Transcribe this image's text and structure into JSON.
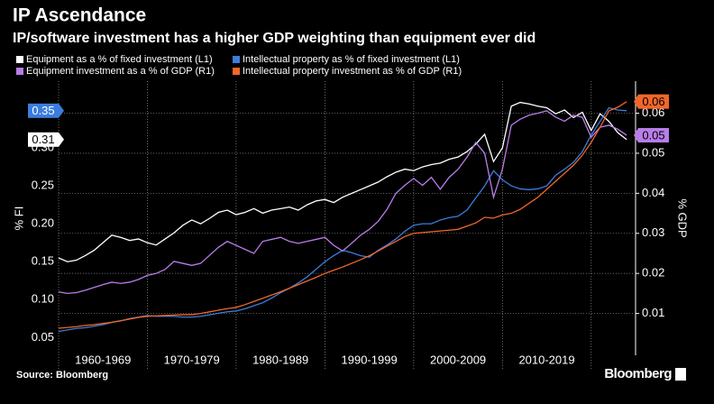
{
  "chart_data": {
    "type": "line",
    "title": "IP Ascendance",
    "subtitle": "IP/software investment has a higher GDP weighting than equipment ever did",
    "y_label": "% FI",
    "y2_label": "% GDP",
    "source": "Source: Bloomberg",
    "brand": "Bloomberg",
    "x": [
      1960,
      1961,
      1962,
      1963,
      1964,
      1965,
      1966,
      1967,
      1968,
      1969,
      1970,
      1971,
      1972,
      1973,
      1974,
      1975,
      1976,
      1977,
      1978,
      1979,
      1980,
      1981,
      1982,
      1983,
      1984,
      1985,
      1986,
      1987,
      1988,
      1989,
      1990,
      1991,
      1992,
      1993,
      1994,
      1995,
      1996,
      1997,
      1998,
      1999,
      2000,
      2001,
      2002,
      2003,
      2004,
      2005,
      2006,
      2007,
      2008,
      2009,
      2010,
      2011,
      2012,
      2013,
      2014,
      2015,
      2016,
      2017,
      2018,
      2019,
      2020,
      2021,
      2022,
      2023,
      2024
    ],
    "xlim": [
      1960,
      2025
    ],
    "xticks": [
      {
        "value": 1960,
        "label": "1960-1969"
      },
      {
        "value": 1970,
        "label": "1970-1979"
      },
      {
        "value": 1980,
        "label": "1980-1989"
      },
      {
        "value": 1990,
        "label": "1990-1999"
      },
      {
        "value": 2000,
        "label": "2000-2009"
      },
      {
        "value": 2010,
        "label": "2010-2019"
      },
      {
        "value": 2020,
        "label": null
      }
    ],
    "ylim": [
      0.029,
      0.388
    ],
    "yticks": [
      0.05,
      {
        "value": 0.1,
        "label": "0.10"
      },
      0.15,
      {
        "value": 0.2,
        "label": "0.20"
      },
      0.25,
      {
        "value": 0.3,
        "label": "0.30"
      },
      0.35
    ],
    "y2lim": [
      0,
      0.068
    ],
    "y2ticks": [
      0.01,
      0.02,
      0.03,
      0.04,
      0.05,
      0.06
    ],
    "grid": true,
    "series": [
      {
        "name": "Equipment as a % of fixed investment (L1)",
        "color": "#ffffff",
        "axis": "y",
        "last_label": "0.31",
        "values": [
          0.155,
          0.15,
          0.152,
          0.158,
          0.165,
          0.175,
          0.185,
          0.182,
          0.178,
          0.18,
          0.175,
          0.172,
          0.18,
          0.188,
          0.198,
          0.205,
          0.2,
          0.207,
          0.215,
          0.218,
          0.212,
          0.215,
          0.22,
          0.214,
          0.218,
          0.22,
          0.222,
          0.218,
          0.225,
          0.23,
          0.232,
          0.228,
          0.235,
          0.24,
          0.245,
          0.25,
          0.255,
          0.262,
          0.268,
          0.272,
          0.27,
          0.275,
          0.278,
          0.28,
          0.285,
          0.288,
          0.295,
          0.305,
          0.318,
          0.282,
          0.3,
          0.355,
          0.36,
          0.358,
          0.355,
          0.353,
          0.345,
          0.35,
          0.34,
          0.347,
          0.323,
          0.345,
          0.335,
          0.32,
          0.311
        ]
      },
      {
        "name": "Intellectual property as % of fixed investment (L1)",
        "color": "#3b7ddd",
        "axis": "y",
        "last_label": "0.35",
        "values": [
          0.058,
          0.06,
          0.062,
          0.063,
          0.065,
          0.067,
          0.07,
          0.072,
          0.075,
          0.077,
          0.079,
          0.078,
          0.078,
          0.078,
          0.077,
          0.077,
          0.078,
          0.08,
          0.082,
          0.084,
          0.085,
          0.088,
          0.092,
          0.096,
          0.102,
          0.109,
          0.115,
          0.122,
          0.13,
          0.14,
          0.15,
          0.158,
          0.165,
          0.162,
          0.158,
          0.156,
          0.165,
          0.172,
          0.18,
          0.19,
          0.198,
          0.2,
          0.2,
          0.205,
          0.208,
          0.21,
          0.218,
          0.234,
          0.25,
          0.27,
          0.258,
          0.25,
          0.246,
          0.245,
          0.246,
          0.25,
          0.264,
          0.272,
          0.281,
          0.295,
          0.317,
          0.335,
          0.353,
          0.35,
          0.349
        ]
      },
      {
        "name": "Equipment investment as a % of GDP (R1)",
        "color": "#b77ee8",
        "axis": "y2",
        "last_label": "0.05",
        "values": [
          0.0154,
          0.015,
          0.0152,
          0.0158,
          0.0165,
          0.0172,
          0.0178,
          0.0175,
          0.0178,
          0.0185,
          0.0195,
          0.02,
          0.021,
          0.023,
          0.0225,
          0.022,
          0.0225,
          0.0245,
          0.0265,
          0.028,
          0.027,
          0.026,
          0.025,
          0.028,
          0.0285,
          0.029,
          0.028,
          0.0275,
          0.028,
          0.0285,
          0.029,
          0.027,
          0.0256,
          0.0275,
          0.0295,
          0.031,
          0.033,
          0.036,
          0.04,
          0.042,
          0.0437,
          0.042,
          0.044,
          0.041,
          0.044,
          0.046,
          0.049,
          0.0527,
          0.05,
          0.039,
          0.046,
          0.057,
          0.0585,
          0.0595,
          0.06,
          0.0606,
          0.059,
          0.058,
          0.0595,
          0.059,
          0.054,
          0.0565,
          0.057,
          0.056,
          0.0545
        ]
      },
      {
        "name": "Intellectual property investment as % of GDP (R1)",
        "color": "#f2662a",
        "axis": "y2",
        "last_label": "0.06",
        "values": [
          0.0063,
          0.0065,
          0.0067,
          0.007,
          0.0072,
          0.0075,
          0.0078,
          0.0082,
          0.0086,
          0.009,
          0.0093,
          0.0094,
          0.0095,
          0.0096,
          0.0097,
          0.0097,
          0.01,
          0.0104,
          0.0108,
          0.0112,
          0.0115,
          0.0122,
          0.013,
          0.0138,
          0.0146,
          0.0154,
          0.0163,
          0.0172,
          0.0181,
          0.019,
          0.02,
          0.0208,
          0.0216,
          0.0225,
          0.0234,
          0.0244,
          0.0256,
          0.0268,
          0.028,
          0.0292,
          0.03,
          0.0302,
          0.0304,
          0.0306,
          0.0308,
          0.031,
          0.0318,
          0.0326,
          0.034,
          0.0338,
          0.0346,
          0.035,
          0.036,
          0.0375,
          0.039,
          0.041,
          0.043,
          0.045,
          0.047,
          0.0495,
          0.0527,
          0.0565,
          0.0606,
          0.0615,
          0.0629
        ]
      }
    ]
  }
}
